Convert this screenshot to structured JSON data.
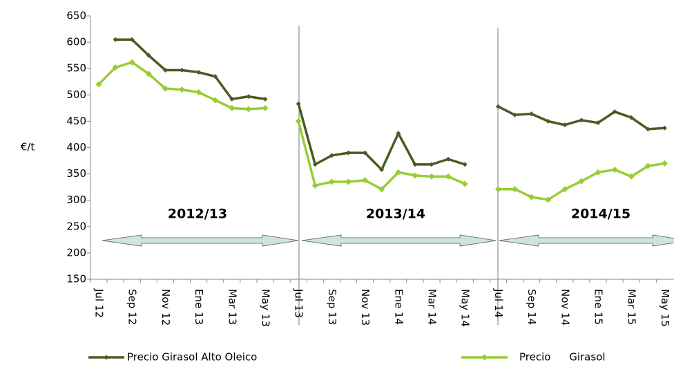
{
  "chart_data": {
    "type": "line",
    "y_label": "€/t",
    "categories": [
      "Jul 12",
      null,
      "Sep 12",
      null,
      "Nov 12",
      null,
      "Ene 13",
      null,
      "Mar 13",
      null,
      "May 13",
      null,
      "Jul 13",
      null,
      "Sep 13",
      null,
      "Nov 13",
      null,
      "Ene 14",
      null,
      "Mar 14",
      null,
      "May 14",
      null,
      "Jul 14",
      null,
      "Sep 14",
      null,
      "Nov 14",
      null,
      "Ene 15",
      null,
      "Mar 15",
      null,
      "May 15"
    ],
    "series": [
      {
        "name": "Precio Girasol Alto Oleico",
        "color": "#4b5a24",
        "values": [
          null,
          605,
          605,
          575,
          547,
          547,
          543,
          535,
          492,
          497,
          492,
          null,
          483,
          368,
          385,
          390,
          390,
          358,
          427,
          368,
          368,
          378,
          368,
          null,
          478,
          462,
          464,
          450,
          443,
          452,
          447,
          468,
          457,
          435,
          437
        ]
      },
      {
        "name": "Precio Girasol",
        "color": "#99cc33",
        "values": [
          520,
          552,
          562,
          540,
          512,
          510,
          505,
          490,
          475,
          473,
          475,
          null,
          450,
          328,
          335,
          335,
          338,
          321,
          353,
          347,
          345,
          345,
          331,
          null,
          321,
          321,
          306,
          301,
          321,
          336,
          353,
          358,
          345,
          365,
          370
        ]
      }
    ],
    "annotations": [
      "2012/13",
      "2013/14",
      "2014/15"
    ],
    "ylim": [
      150,
      650
    ],
    "yticks": [
      150,
      200,
      250,
      300,
      350,
      400,
      450,
      500,
      550,
      600,
      650
    ],
    "grid": false
  }
}
